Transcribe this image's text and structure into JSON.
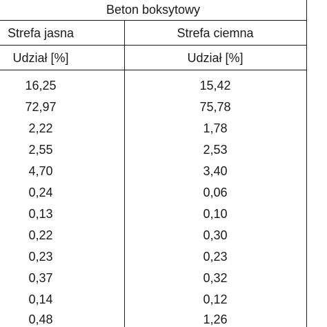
{
  "table": {
    "group_header": "Beton boksytowy",
    "col1_header": "Strefa jasna",
    "col2_header": "Strefa ciemna",
    "col1_unit": "Udział [%]",
    "col2_unit": "Udział [%]",
    "rows": [
      [
        "16,25",
        "15,42"
      ],
      [
        "72,97",
        "75,78"
      ],
      [
        "2,22",
        "1,78"
      ],
      [
        "2,55",
        "2,53"
      ],
      [
        "4,70",
        "3,40"
      ],
      [
        "0,24",
        "0,06"
      ],
      [
        "0,13",
        "0,10"
      ],
      [
        "0,22",
        "0,30"
      ],
      [
        "0,23",
        "0,23"
      ],
      [
        "0,37",
        "0,32"
      ],
      [
        "0,14",
        "0,12"
      ],
      [
        "0,48",
        "1,26"
      ]
    ]
  }
}
